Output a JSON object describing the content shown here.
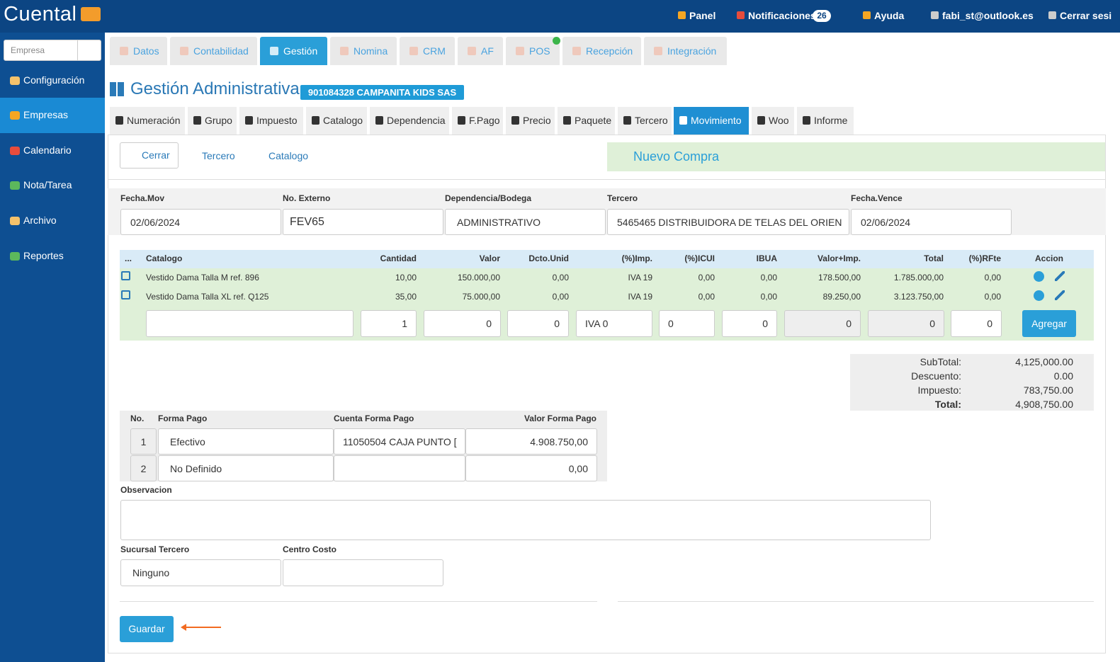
{
  "header": {
    "logo": "Cuental",
    "nav": [
      "Panel",
      "Notificaciones",
      "Ayuda",
      "fabi_st@outlook.es",
      "Cerrar sesi"
    ],
    "notif_count": 26
  },
  "sidebar": {
    "search_placeholder": "Empresa",
    "items": [
      "Configuración",
      "Empresas",
      "Calendario",
      "Nota/Tarea",
      "Archivo",
      "Reportes"
    ]
  },
  "tabs": [
    "Datos",
    "Contabilidad",
    "Gestión",
    "Nomina",
    "CRM",
    "AF",
    "POS",
    "Recepción",
    "Integración"
  ],
  "page": {
    "title": "Gestión Administrativa",
    "company": "901084328 CAMPANITA KIDS SAS"
  },
  "subtabs": [
    "Numeración",
    "Grupo",
    "Impuesto",
    "Catalogo",
    "Dependencia",
    "F.Pago",
    "Precio",
    "Paquete",
    "Tercero",
    "Movimiento",
    "Woo",
    "Informe"
  ],
  "toolbar": {
    "buttons": [
      "Cerrar",
      "Tercero",
      "Catalogo"
    ],
    "banner": "Nuevo Compra"
  },
  "form": {
    "fields": [
      {
        "label": "Fecha.Mov",
        "value": "02/06/2024"
      },
      {
        "label": "No. Externo",
        "value": "FEV65"
      },
      {
        "label": "Dependencia/Bodega",
        "value": "ADMINISTRATIVO"
      },
      {
        "label": "Tercero",
        "value": "5465465 DISTRIBUIDORA DE TELAS DEL ORIEN"
      },
      {
        "label": "Fecha.Vence",
        "value": "02/06/2024"
      }
    ]
  },
  "table": {
    "headers": [
      "...",
      "Catalogo",
      "Cantidad",
      "Valor",
      "Dcto.Unid",
      "(%)Imp.",
      "(%)ICUI",
      "IBUA",
      "Valor+Imp.",
      "Total",
      "(%)RFte",
      "Accion"
    ],
    "rows": [
      [
        "Vestido Dama Talla M ref. 896",
        "10,00",
        "150.000,00",
        "0,00",
        "IVA 19",
        "0,00",
        "0,00",
        "178.500,00",
        "1.785.000,00",
        "0,00"
      ],
      [
        "Vestido Dama Talla XL ref. Q125",
        "35,00",
        "75.000,00",
        "0,00",
        "IVA 19",
        "0,00",
        "0,00",
        "89.250,00",
        "3.123.750,00",
        "0,00"
      ]
    ],
    "entry": [
      "1",
      "0",
      "0",
      "IVA 0",
      "0",
      "0",
      "0",
      "0",
      "0"
    ],
    "add": "Agregar"
  },
  "totals": [
    [
      "SubTotal:",
      "4,125,000.00"
    ],
    [
      "Descuento:",
      "0.00"
    ],
    [
      "Impuesto:",
      "783,750.00"
    ],
    [
      "Total:",
      "4,908,750.00"
    ]
  ],
  "payments": {
    "headers": [
      "No.",
      "Forma Pago",
      "Cuenta Forma Pago",
      "Valor Forma Pago"
    ],
    "rows": [
      {
        "no": 1,
        "method": "Efectivo",
        "account": "11050504 CAJA PUNTO [",
        "value": "4.908.750,00"
      },
      {
        "no": 2,
        "method": "No Definido",
        "value": "0,00"
      }
    ]
  },
  "observacion": "Observacion",
  "sucursal": {
    "label": "Sucursal Tercero",
    "value": "Ninguno"
  },
  "centro_costo": "Centro Costo",
  "save": "Guardar"
}
